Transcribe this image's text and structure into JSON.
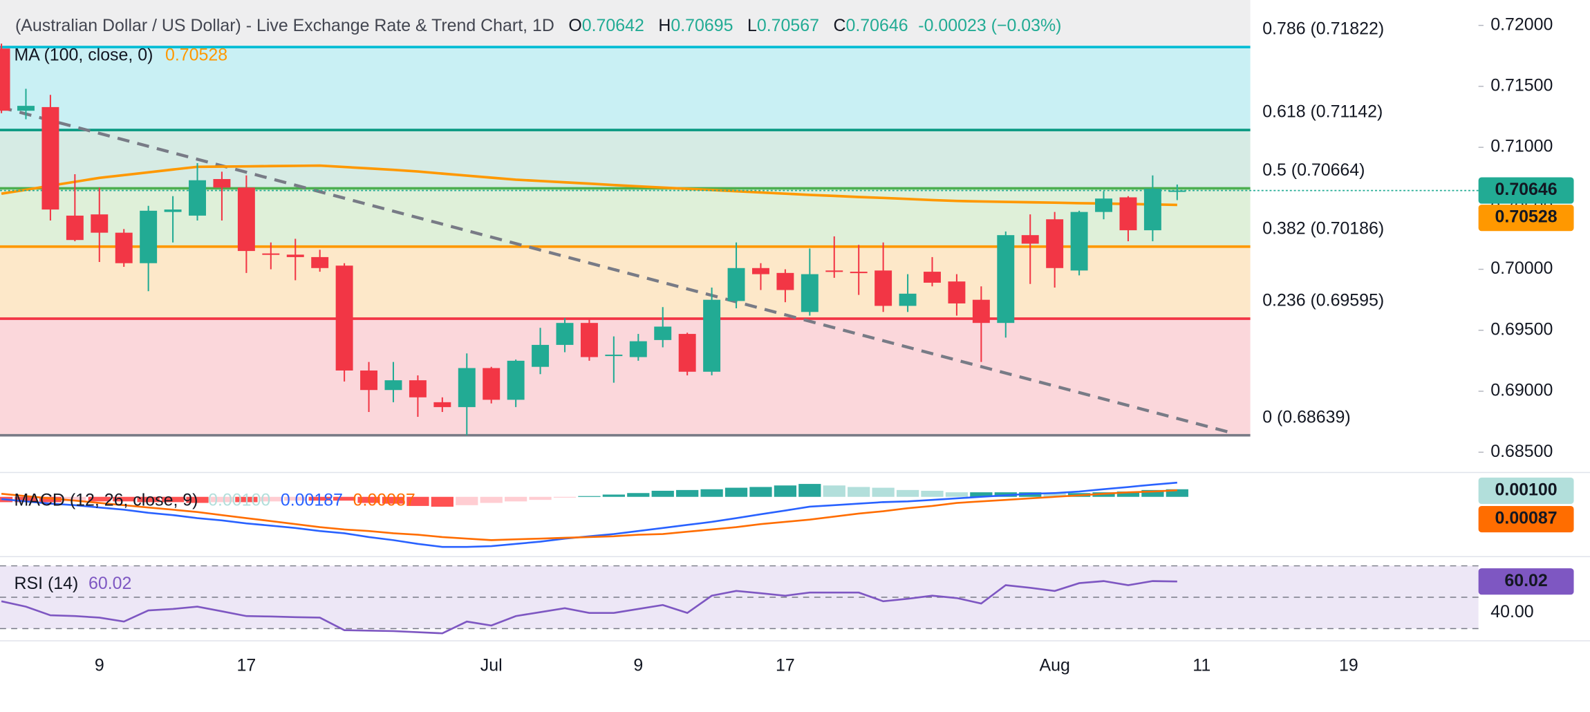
{
  "header": {
    "title": "(Australian Dollar / US Dollar) - Live Exchange Rate & Trend Chart, 1D",
    "ohlc_letters": [
      "O",
      "H",
      "L",
      "C"
    ],
    "change": "-0.00023 (−0.03%)"
  },
  "chart_data": [
    {
      "type": "candlestick",
      "up_color": "#22ab94",
      "down_color": "#f23645",
      "open": [
        0.7181,
        0.713,
        0.7133,
        0.7044,
        0.7045,
        0.703,
        0.7005,
        0.7047,
        0.7044,
        0.7074,
        0.7067,
        0.7013,
        0.7012,
        0.701,
        0.7003,
        0.6917,
        0.6901,
        0.6909,
        0.6891,
        0.6887,
        0.6919,
        0.6893,
        0.692,
        0.6938,
        0.6956,
        0.693,
        0.6928,
        0.6942,
        0.6947,
        0.6916,
        0.6974,
        0.7001,
        0.6997,
        0.6965,
        0.6999,
        0.6998,
        0.6999,
        0.697,
        0.6998,
        0.699,
        0.6975,
        0.6956,
        0.7028,
        0.7041,
        0.6999,
        0.7047,
        0.7059,
        0.7032,
        0.70642
      ],
      "high": [
        0.7185,
        0.7148,
        0.7143,
        0.7078,
        0.7067,
        0.7033,
        0.7052,
        0.706,
        0.7087,
        0.708,
        0.7077,
        0.7022,
        0.7025,
        0.7016,
        0.7005,
        0.6924,
        0.6924,
        0.6913,
        0.6895,
        0.6931,
        0.692,
        0.6926,
        0.6952,
        0.696,
        0.696,
        0.6945,
        0.6947,
        0.6969,
        0.6948,
        0.6985,
        0.7022,
        0.7005,
        0.7,
        0.7017,
        0.7027,
        0.702,
        0.7022,
        0.6996,
        0.701,
        0.6996,
        0.6986,
        0.7031,
        0.7045,
        0.7047,
        0.7048,
        0.7064,
        0.706,
        0.7077,
        0.70695
      ],
      "low": [
        0.7128,
        0.7123,
        0.704,
        0.7023,
        0.7006,
        0.7002,
        0.6982,
        0.7022,
        0.704,
        0.704,
        0.6997,
        0.7,
        0.6991,
        0.6998,
        0.6908,
        0.6883,
        0.6891,
        0.6879,
        0.6883,
        0.6864,
        0.689,
        0.6887,
        0.6914,
        0.6932,
        0.6925,
        0.6907,
        0.6925,
        0.6936,
        0.6913,
        0.6913,
        0.6968,
        0.6983,
        0.6973,
        0.6962,
        0.6993,
        0.6979,
        0.6965,
        0.6965,
        0.6986,
        0.6962,
        0.6924,
        0.6944,
        0.6988,
        0.6985,
        0.6995,
        0.7041,
        0.7023,
        0.7023,
        0.70567
      ],
      "close": [
        0.713,
        0.7134,
        0.7049,
        0.7024,
        0.703,
        0.7005,
        0.7048,
        0.7049,
        0.7073,
        0.7067,
        0.7015,
        0.7012,
        0.701,
        0.7001,
        0.6917,
        0.6901,
        0.6909,
        0.6895,
        0.6887,
        0.6919,
        0.6893,
        0.6925,
        0.6938,
        0.6956,
        0.6928,
        0.693,
        0.6941,
        0.6953,
        0.6916,
        0.6975,
        0.7001,
        0.6996,
        0.6983,
        0.6996,
        0.6998,
        0.6997,
        0.697,
        0.698,
        0.6989,
        0.6972,
        0.6956,
        0.7028,
        0.7021,
        0.7001,
        0.7047,
        0.7058,
        0.7032,
        0.7066,
        0.70646
      ],
      "ma": {
        "name": "MA (100, close, 0)",
        "color": "#ff9800",
        "values": [
          0.7062,
          0.70652,
          0.70685,
          0.70717,
          0.7075,
          0.70772,
          0.70795,
          0.70818,
          0.7084,
          0.70842,
          0.70844,
          0.70846,
          0.70848,
          0.7085,
          0.70839,
          0.70827,
          0.70815,
          0.70802,
          0.70785,
          0.70768,
          0.70751,
          0.70735,
          0.70724,
          0.70713,
          0.70702,
          0.70691,
          0.7068,
          0.7067,
          0.7066,
          0.7065,
          0.7064,
          0.7063,
          0.7062,
          0.7061,
          0.70602,
          0.70593,
          0.70585,
          0.70577,
          0.70568,
          0.7056,
          0.70556,
          0.70553,
          0.70549,
          0.70546,
          0.70542,
          0.70539,
          0.70535,
          0.70532,
          0.70528
        ]
      },
      "fib_levels": [
        {
          "label": "0.786 (0.71822)",
          "value": 0.71822,
          "color": "#00bcd4",
          "fill": "#c9f0f4"
        },
        {
          "label": "0.618 (0.71142)",
          "value": 0.71142,
          "color": "#089981",
          "fill": "#d6ebe4"
        },
        {
          "label": "0.5 (0.70664)",
          "value": 0.70664,
          "color": "#4caf50",
          "fill": "#dff0d9"
        },
        {
          "label": "0.382 (0.70186)",
          "value": 0.70186,
          "color": "#ff9800",
          "fill": "#fde8c9"
        },
        {
          "label": "0.236 (0.69595)",
          "value": 0.69595,
          "color": "#f23645",
          "fill": "#fbd7db"
        },
        {
          "label": "0 (0.68639)",
          "value": 0.68639,
          "color": "#787b86"
        }
      ],
      "trendline": {
        "x": [
          -0.06,
          50.2
        ],
        "y": [
          0.7133,
          0.6866
        ],
        "color": "#787b86"
      },
      "xlim": [
        -0.058,
        60.3
      ],
      "xticks": [
        {
          "value": 4,
          "label": "9"
        },
        {
          "value": 10,
          "label": "17"
        },
        {
          "value": 20,
          "label": "Jul"
        },
        {
          "value": 26,
          "label": "9"
        },
        {
          "value": 32,
          "label": "17"
        },
        {
          "value": 43,
          "label": "Aug"
        },
        {
          "value": 49,
          "label": "11"
        },
        {
          "value": 55,
          "label": "19"
        }
      ],
      "ylim": [
        0.68342,
        0.72208
      ],
      "yticks": [
        {
          "value": 0.72,
          "label": "0.72000"
        },
        {
          "value": 0.715,
          "label": "0.71500"
        },
        {
          "value": 0.71,
          "label": "0.71000"
        },
        {
          "value": 0.705,
          "label": "0.70500"
        },
        {
          "value": 0.7,
          "label": "0.70000"
        },
        {
          "value": 0.695,
          "label": "0.69500"
        },
        {
          "value": 0.69,
          "label": "0.69000"
        },
        {
          "value": 0.685,
          "label": "0.68500"
        }
      ]
    },
    {
      "type": "macd",
      "title": "MACD (12, 26, close, 9)",
      "ylim": [
        -0.00775,
        0.00294
      ],
      "series": [
        {
          "kind": "histogram",
          "color": "#26a69a",
          "last_value_label": "0.00100",
          "values": [
            -0.0007,
            -0.0007,
            -0.0007,
            -0.0006,
            -0.0006,
            -0.0006,
            -0.0007,
            -0.0007,
            -0.0008,
            -0.0007,
            -0.0007,
            -0.0006,
            -0.0005,
            -0.0005,
            -0.0005,
            -0.0008,
            -0.0009,
            -0.0012,
            -0.0013,
            -0.0011,
            -0.0008,
            -0.0006,
            -0.0004,
            -0.0001,
            0.0001,
            0.0003,
            0.0005,
            0.0008,
            0.0009,
            0.001,
            0.0012,
            0.0013,
            0.0015,
            0.0017,
            0.0015,
            0.0013,
            0.0012,
            0.0009,
            0.0008,
            0.0006,
            0.0006,
            0.0006,
            0.0006,
            0.0005,
            0.0005,
            0.0006,
            0.0007,
            0.0009,
            0.001
          ]
        },
        {
          "kind": "line",
          "color": "#2962ff",
          "last_value_label": "0.00187",
          "values": [
            -0.0003,
            -0.0006,
            -0.0009,
            -0.0011,
            -0.0014,
            -0.0017,
            -0.0021,
            -0.0024,
            -0.0028,
            -0.0031,
            -0.0035,
            -0.0038,
            -0.0041,
            -0.0045,
            -0.0048,
            -0.0053,
            -0.0057,
            -0.0062,
            -0.0066,
            -0.0066,
            -0.0065,
            -0.0062,
            -0.0059,
            -0.0055,
            -0.0052,
            -0.0049,
            -0.0045,
            -0.0041,
            -0.0037,
            -0.0033,
            -0.0028,
            -0.0023,
            -0.0018,
            -0.0013,
            -0.0011,
            -0.0009,
            -0.0007,
            -0.0006,
            -0.0004,
            -0.0002,
            0,
            0.0002,
            0.0004,
            0.0005,
            0.0007,
            0.001,
            0.0013,
            0.0016,
            0.00187
          ]
        },
        {
          "kind": "line",
          "color": "#ff6d00",
          "last_value_label": "0.00087",
          "values": [
            0.0004,
            0.0001,
            -0.0002,
            -0.0005,
            -0.0008,
            -0.0011,
            -0.0014,
            -0.0017,
            -0.002,
            -0.0024,
            -0.0028,
            -0.0032,
            -0.0036,
            -0.004,
            -0.0043,
            -0.0045,
            -0.0048,
            -0.005,
            -0.0053,
            -0.0055,
            -0.0057,
            -0.0056,
            -0.0055,
            -0.0054,
            -0.0053,
            -0.0052,
            -0.005,
            -0.0049,
            -0.0046,
            -0.0043,
            -0.004,
            -0.0036,
            -0.0033,
            -0.003,
            -0.0026,
            -0.0022,
            -0.0019,
            -0.0015,
            -0.0012,
            -0.0008,
            -0.0006,
            -0.0004,
            -0.0002,
            0,
            0.0002,
            0.0004,
            0.0006,
            0.0007,
            0.00087
          ]
        }
      ]
    },
    {
      "type": "line",
      "title": "RSI (14)",
      "color": "#7e57c2",
      "values": [
        47.4,
        44,
        38.5,
        38,
        37,
        34.5,
        41.6,
        42.5,
        44,
        41,
        38,
        37.7,
        37.3,
        37,
        29,
        28.7,
        28.4,
        27.7,
        27,
        34.5,
        32,
        38,
        40.5,
        43,
        40,
        40,
        42.5,
        45,
        40,
        51,
        54,
        52.5,
        51,
        53,
        53,
        53,
        47.4,
        49,
        51,
        49.5,
        46,
        57.7,
        56,
        54,
        59,
        60.3,
        57.7,
        60.3,
        60.02
      ],
      "levels": [
        70,
        50,
        30
      ],
      "ylim": [
        24.8,
        75.2
      ],
      "yticks": [
        {
          "value": 40,
          "label": "40.00"
        }
      ]
    }
  ]
}
